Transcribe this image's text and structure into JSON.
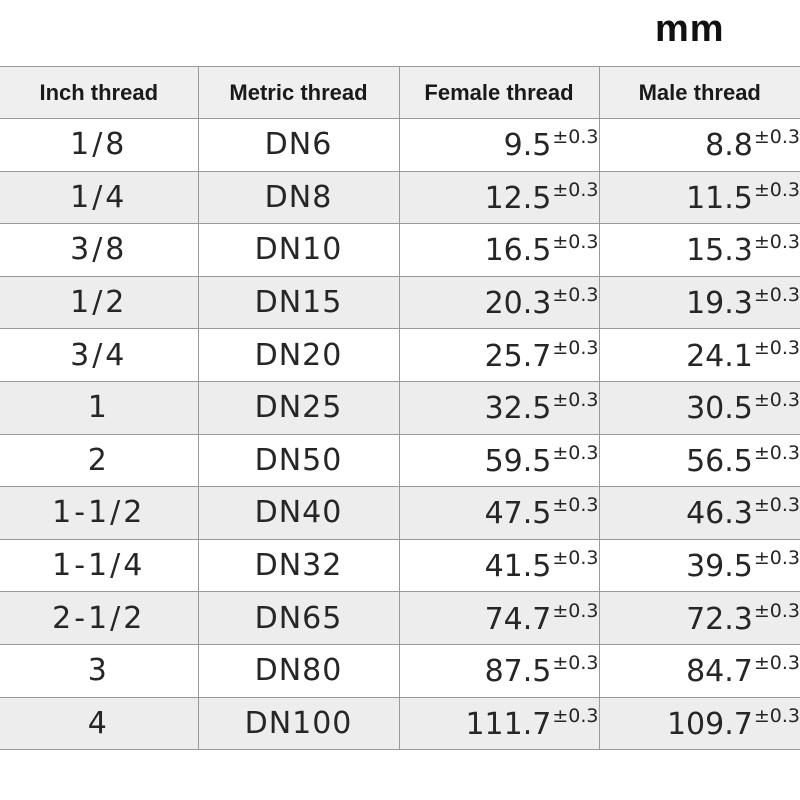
{
  "unit": "mm",
  "columns": {
    "inch": "Inch thread",
    "metric": "Metric thread",
    "female": "Female thread",
    "male": "Male thread"
  },
  "rows": [
    {
      "inch": "1/8",
      "metric": "DN6",
      "female": "9.5",
      "female_tol": "±0.3",
      "male": "8.8",
      "male_tol": "±0.3"
    },
    {
      "inch": "1/4",
      "metric": "DN8",
      "female": "12.5",
      "female_tol": "±0.3",
      "male": "11.5",
      "male_tol": "±0.3"
    },
    {
      "inch": "3/8",
      "metric": "DN10",
      "female": "16.5",
      "female_tol": "±0.3",
      "male": "15.3",
      "male_tol": "±0.3"
    },
    {
      "inch": "1/2",
      "metric": "DN15",
      "female": "20.3",
      "female_tol": "±0.3",
      "male": "19.3",
      "male_tol": "±0.3"
    },
    {
      "inch": "3/4",
      "metric": "DN20",
      "female": "25.7",
      "female_tol": "±0.3",
      "male": "24.1",
      "male_tol": "±0.3"
    },
    {
      "inch": "1",
      "metric": "DN25",
      "female": "32.5",
      "female_tol": "±0.3",
      "male": "30.5",
      "male_tol": "±0.3"
    },
    {
      "inch": "2",
      "metric": "DN50",
      "female": "59.5",
      "female_tol": "±0.3",
      "male": "56.5",
      "male_tol": "±0.3"
    },
    {
      "inch": "1-1/2",
      "metric": "DN40",
      "female": "47.5",
      "female_tol": "±0.3",
      "male": "46.3",
      "male_tol": "±0.3"
    },
    {
      "inch": "1-1/4",
      "metric": "DN32",
      "female": "41.5",
      "female_tol": "±0.3",
      "male": "39.5",
      "male_tol": "±0.3"
    },
    {
      "inch": "2-1/2",
      "metric": "DN65",
      "female": "74.7",
      "female_tol": "±0.3",
      "male": "72.3",
      "male_tol": "±0.3"
    },
    {
      "inch": "3",
      "metric": "DN80",
      "female": "87.5",
      "female_tol": "±0.3",
      "male": "84.7",
      "male_tol": "±0.3"
    },
    {
      "inch": "4",
      "metric": "DN100",
      "female": "111.7",
      "female_tol": "±0.3",
      "male": "109.7",
      "male_tol": "±0.3"
    }
  ]
}
